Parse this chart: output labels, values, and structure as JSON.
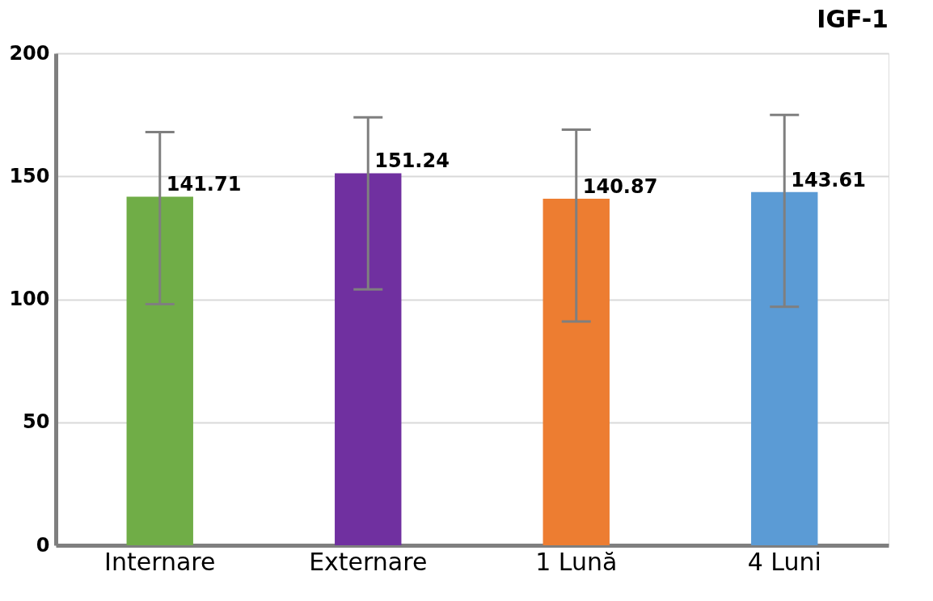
{
  "chart_data": {
    "type": "bar",
    "title": "IGF-1",
    "categories": [
      "Internare",
      "Externare",
      "1 Lună",
      "4 Luni"
    ],
    "values": [
      141.71,
      151.24,
      140.87,
      143.61
    ],
    "colors": [
      "#70ad47",
      "#7030a0",
      "#ed7d31",
      "#5b9bd5"
    ],
    "errors": [
      [
        98,
        168
      ],
      [
        104,
        174
      ],
      [
        91,
        169
      ],
      [
        97,
        175
      ]
    ],
    "ylim": [
      0,
      200
    ],
    "yticks": [
      0,
      50,
      100,
      150,
      200
    ],
    "grid": "y",
    "data_labels": true
  }
}
